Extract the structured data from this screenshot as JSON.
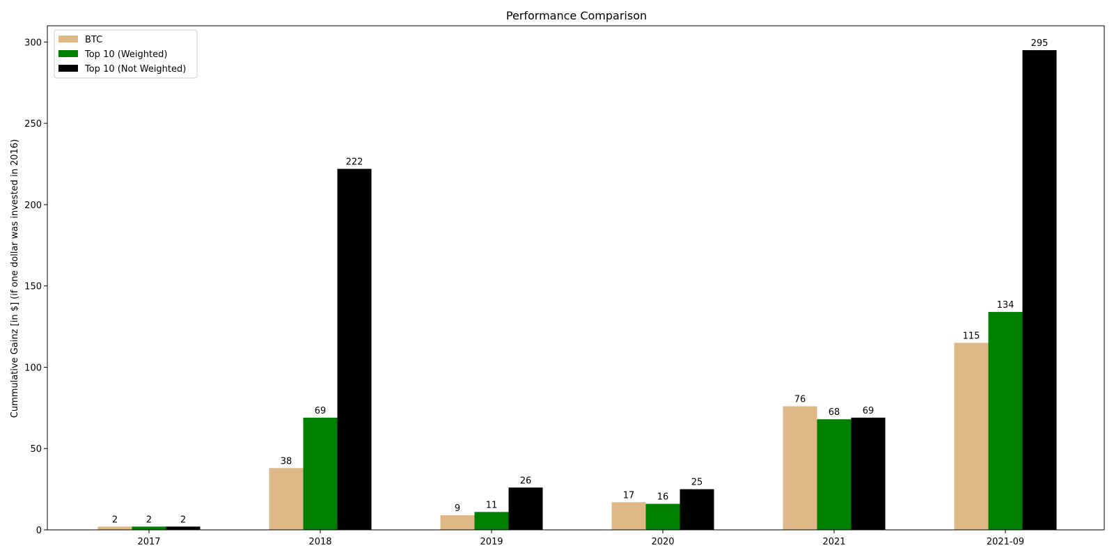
{
  "chart_data": {
    "type": "bar",
    "title": "Performance Comparison",
    "xlabel": "",
    "ylabel": "Cummulative Gainz [in $] (if one dollar was invested in 2016)",
    "categories": [
      "2017",
      "2018",
      "2019",
      "2020",
      "2021",
      "2021-09"
    ],
    "series": [
      {
        "name": "BTC",
        "color": "#deb887",
        "values": [
          2,
          38,
          9,
          17,
          76,
          115
        ]
      },
      {
        "name": "Top 10 (Weighted)",
        "color": "#008000",
        "values": [
          2,
          69,
          11,
          16,
          68,
          134
        ]
      },
      {
        "name": "Top 10 (Not Weighted)",
        "color": "#000000",
        "values": [
          2,
          222,
          26,
          25,
          69,
          295
        ]
      }
    ],
    "ylim": [
      0,
      310
    ],
    "yticks": [
      0,
      50,
      100,
      150,
      200,
      250,
      300
    ],
    "grid": false,
    "legend_position": "top-left"
  }
}
